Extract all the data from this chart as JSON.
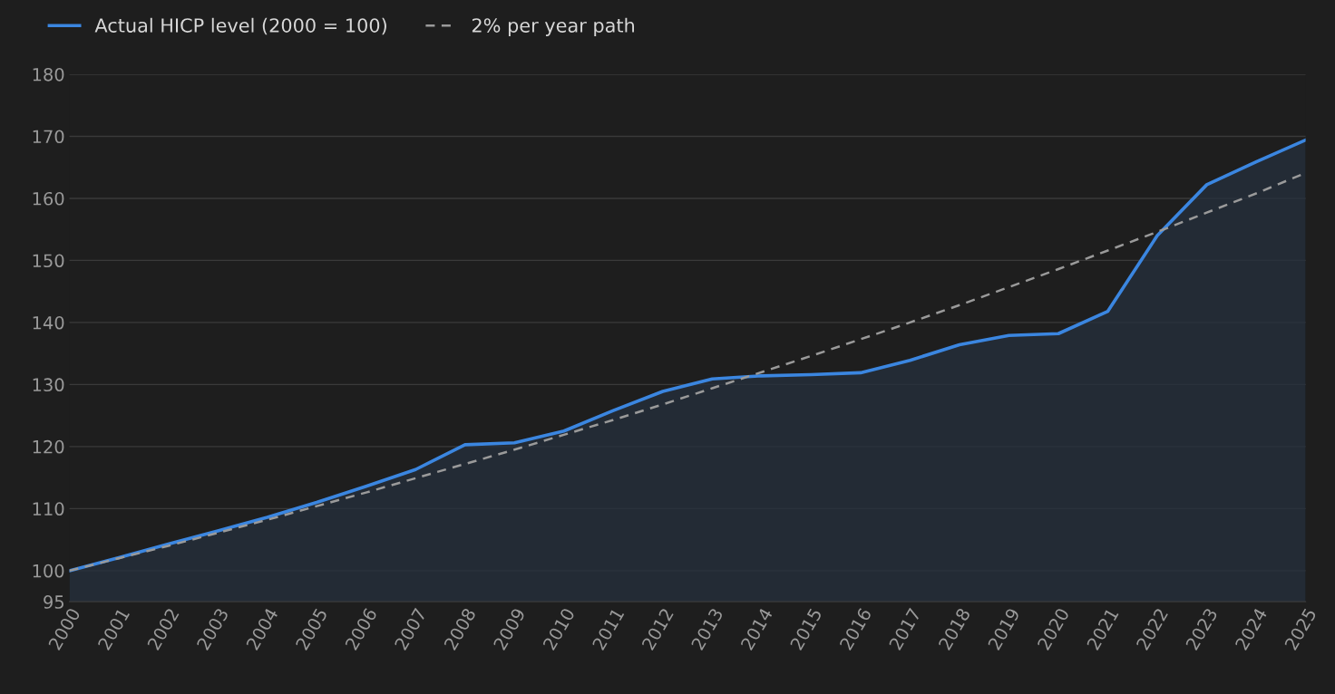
{
  "chart_data": {
    "type": "line",
    "categories": [
      "2000",
      "2001",
      "2002",
      "2003",
      "2004",
      "2005",
      "2006",
      "2007",
      "2008",
      "2009",
      "2010",
      "2011",
      "2012",
      "2013",
      "2014",
      "2015",
      "2016",
      "2017",
      "2018",
      "2019",
      "2020",
      "2021",
      "2022",
      "2023",
      "2024",
      "2025"
    ],
    "series": [
      {
        "name": "Actual HICP level (2000 = 100)",
        "type": "area",
        "color": "#3b86e0",
        "line_style": "solid",
        "values": [
          100,
          102.1,
          104.3,
          106.4,
          108.6,
          111.0,
          113.6,
          116.3,
          120.3,
          120.6,
          122.5,
          125.8,
          128.9,
          130.9,
          131.4,
          131.6,
          131.9,
          133.9,
          136.4,
          137.9,
          138.2,
          141.8,
          154.0,
          162.2,
          165.9,
          169.4
        ]
      },
      {
        "name": "2% per year path",
        "color": "#9a9a9a",
        "line_style": "dashed",
        "values": [
          100,
          102.0,
          104.0,
          106.1,
          108.2,
          110.4,
          112.6,
          114.9,
          117.2,
          119.5,
          121.9,
          124.3,
          126.8,
          129.4,
          132.0,
          134.6,
          137.3,
          140.0,
          142.8,
          145.7,
          148.6,
          151.6,
          154.6,
          157.7,
          160.8,
          164.1
        ]
      }
    ],
    "ylim": [
      95,
      180
    ],
    "yticks": [
      95,
      100,
      110,
      120,
      130,
      140,
      150,
      160,
      170,
      180
    ],
    "grid": "y",
    "legend": "top left"
  }
}
